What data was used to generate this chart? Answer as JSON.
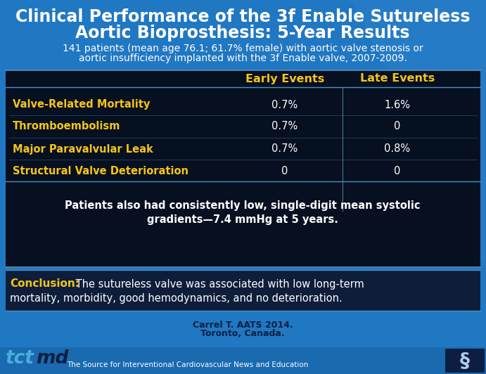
{
  "title_line1": "Clinical Performance of the 3f Enable Sutureless",
  "title_line2": "Aortic Bioprosthesis: 5-Year Results",
  "subtitle_line1": "141 patients (mean age 76.1; 61.7% female) with aortic valve stenosis or",
  "subtitle_line2": "aortic insufficiency implanted with the 3f Enable valve, 2007-2009.",
  "col_headers": [
    "Early Events",
    "Late Events"
  ],
  "rows": [
    {
      "label": "Valve-Related Mortality",
      "early": "0.7%",
      "late": "1.6%"
    },
    {
      "label": "Thromboembolism",
      "early": "0.7%",
      "late": "0"
    },
    {
      "label": "Major Paravalvular Leak",
      "early": "0.7%",
      "late": "0.8%"
    },
    {
      "label": "Structural Valve Deterioration",
      "early": "0",
      "late": "0"
    }
  ],
  "note_line1": "Patients also had consistently low, single-digit mean systolic",
  "note_line2": "gradients—7.4 mmHg at 5 years.",
  "conclusion_label": "Conclusion:",
  "conclusion_text1": " The sutureless valve was associated with low long-term",
  "conclusion_text2": "mortality, morbidity, good hemodynamics, and no deterioration.",
  "citation_line1": "Carrel T. AATS 2014.",
  "citation_line2": "Toronto, Canada.",
  "footer_text": "The Source for Interventional Cardiovascular News and Education",
  "bg_blue": "#2077c2",
  "bg_dark": "#0a1628",
  "table_bg": "#071020",
  "conclusion_bg": "#0e1e3a",
  "footer_bg": "#1a6ab0",
  "title_color": "#ffffff",
  "subtitle_color": "#ffffff",
  "header_color": "#f5c518",
  "row_label_color": "#f5c518",
  "data_color": "#ffffff",
  "note_color": "#ffffff",
  "conclusion_label_color": "#f5c518",
  "conclusion_text_color": "#ffffff",
  "citation_color": "#0d2040",
  "tctmd_tc_color": "#4aacde",
  "tctmd_md_color": "#0d2040",
  "footer_text_color": "#ffffff",
  "divider_color": "#5090c0",
  "col_divider_color": "#6aA0c0"
}
